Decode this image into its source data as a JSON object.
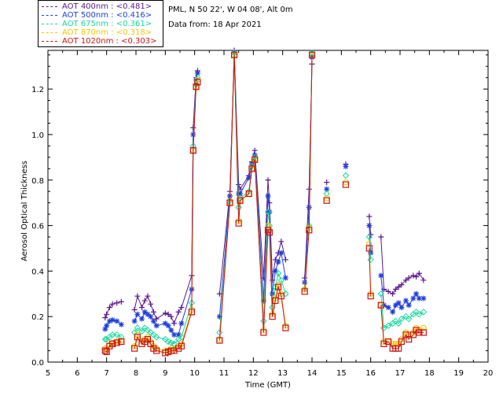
{
  "legend": [
    {
      "label": "AOT  400nm : <0.481>",
      "color": "#5a1a8c"
    },
    {
      "label": "AOT  500nm : <0.416>",
      "color": "#1f3fd8"
    },
    {
      "label": "AOT  675nm : <0.361>",
      "color": "#19d6a0"
    },
    {
      "label": "AOT  870nm : <0.318>",
      "color": "#f2c800"
    },
    {
      "label": "AOT 1020nm : <0.303>",
      "color": "#c81414"
    }
  ],
  "info": {
    "location": "PML, N 50 22', W 04 08', Alt 0m",
    "date": "Data from: 18 Apr 2021"
  },
  "chart_data": {
    "type": "scatter",
    "xlabel": "Time (GMT)",
    "ylabel": "Aerosol Optical Thickness",
    "xlim": [
      5,
      20
    ],
    "ylim": [
      0,
      1.37
    ],
    "xticks": [
      "5",
      "6",
      "7",
      "8",
      "9",
      "10",
      "11",
      "12",
      "13",
      "14",
      "15",
      "16",
      "17",
      "18",
      "19",
      "20"
    ],
    "yticks": [
      "0.0",
      "0.2",
      "0.4",
      "0.6",
      "0.8",
      "1.0",
      "1.2"
    ],
    "x": [
      6.95,
      7.0,
      7.1,
      7.2,
      7.35,
      7.5,
      7.95,
      8.05,
      8.2,
      8.3,
      8.4,
      8.5,
      8.6,
      8.7,
      9.0,
      9.1,
      9.2,
      9.3,
      9.45,
      9.55,
      9.9,
      9.95,
      10.05,
      10.1,
      10.85,
      11.2,
      11.35,
      11.5,
      11.55,
      11.85,
      11.95,
      12.05,
      12.35,
      12.5,
      12.55,
      12.65,
      12.75,
      12.85,
      12.95,
      13.1,
      13.75,
      13.9,
      14.0,
      14.5,
      15.15,
      15.95,
      16.0,
      16.35,
      16.45,
      16.6,
      16.75,
      16.85,
      16.95,
      17.05,
      17.2,
      17.3,
      17.45,
      17.55,
      17.65,
      17.8
    ],
    "series": [
      {
        "name": "AOT  400nm",
        "values": [
          0.195,
          0.21,
          0.24,
          0.255,
          0.26,
          0.265,
          0.23,
          0.29,
          0.24,
          0.27,
          0.29,
          0.255,
          0.22,
          0.19,
          0.215,
          0.21,
          0.2,
          0.17,
          0.22,
          0.24,
          0.38,
          1.03,
          1.25,
          1.28,
          0.3,
          0.75,
          1.37,
          0.78,
          0.76,
          0.82,
          0.88,
          0.93,
          0.37,
          0.8,
          0.7,
          0.36,
          0.45,
          0.48,
          0.53,
          0.45,
          0.37,
          0.76,
          1.31,
          0.79,
          0.87,
          0.64,
          0.56,
          0.55,
          0.32,
          0.31,
          0.3,
          0.32,
          0.33,
          0.34,
          0.36,
          0.37,
          0.38,
          0.375,
          0.39,
          0.36
        ]
      },
      {
        "name": "AOT  500nm",
        "values": [
          0.145,
          0.16,
          0.18,
          0.185,
          0.18,
          0.165,
          0.18,
          0.21,
          0.19,
          0.22,
          0.21,
          0.2,
          0.18,
          0.16,
          0.17,
          0.16,
          0.14,
          0.12,
          0.12,
          0.17,
          0.32,
          1.0,
          1.24,
          1.27,
          0.2,
          0.73,
          1.36,
          0.74,
          0.74,
          0.81,
          0.87,
          0.91,
          0.27,
          0.73,
          0.66,
          0.3,
          0.4,
          0.44,
          0.48,
          0.37,
          0.35,
          0.68,
          1.34,
          0.76,
          0.86,
          0.6,
          0.48,
          0.38,
          0.25,
          0.24,
          0.22,
          0.25,
          0.26,
          0.24,
          0.27,
          0.25,
          0.28,
          0.3,
          0.28,
          0.28
        ]
      },
      {
        "name": "AOT  675nm",
        "values": [
          0.1,
          0.1,
          0.11,
          0.12,
          0.12,
          0.11,
          0.13,
          0.15,
          0.135,
          0.15,
          0.14,
          0.13,
          0.12,
          0.11,
          0.1,
          0.09,
          0.085,
          0.08,
          0.1,
          0.11,
          0.26,
          0.95,
          1.22,
          1.25,
          0.13,
          0.71,
          1.36,
          0.68,
          0.72,
          0.75,
          0.86,
          0.9,
          0.18,
          0.66,
          0.6,
          0.24,
          0.33,
          0.39,
          0.36,
          0.3,
          0.32,
          0.6,
          1.36,
          0.74,
          0.82,
          0.55,
          0.45,
          0.3,
          0.15,
          0.16,
          0.17,
          0.18,
          0.17,
          0.19,
          0.2,
          0.19,
          0.21,
          0.22,
          0.21,
          0.22
        ]
      },
      {
        "name": "AOT  870nm",
        "values": [
          0.06,
          0.055,
          0.075,
          0.085,
          0.09,
          0.095,
          0.07,
          0.12,
          0.09,
          0.1,
          0.11,
          0.09,
          0.07,
          0.06,
          0.05,
          0.05,
          0.06,
          0.055,
          0.07,
          0.08,
          0.23,
          0.93,
          1.21,
          1.24,
          0.1,
          0.7,
          1.35,
          0.62,
          0.71,
          0.74,
          0.85,
          0.89,
          0.14,
          0.6,
          0.58,
          0.21,
          0.28,
          0.34,
          0.3,
          0.16,
          0.32,
          0.59,
          1.35,
          0.72,
          0.79,
          0.52,
          0.3,
          0.25,
          0.09,
          0.09,
          0.08,
          0.08,
          0.08,
          0.1,
          0.13,
          0.12,
          0.13,
          0.15,
          0.14,
          0.15
        ]
      },
      {
        "name": "AOT 1020nm",
        "values": [
          0.05,
          0.045,
          0.07,
          0.08,
          0.085,
          0.09,
          0.06,
          0.11,
          0.08,
          0.09,
          0.1,
          0.08,
          0.06,
          0.05,
          0.04,
          0.045,
          0.05,
          0.05,
          0.06,
          0.07,
          0.22,
          0.93,
          1.21,
          1.23,
          0.095,
          0.7,
          1.35,
          0.61,
          0.71,
          0.74,
          0.85,
          0.89,
          0.13,
          0.58,
          0.57,
          0.2,
          0.27,
          0.33,
          0.29,
          0.15,
          0.31,
          0.58,
          1.35,
          0.71,
          0.78,
          0.5,
          0.29,
          0.25,
          0.08,
          0.09,
          0.06,
          0.06,
          0.06,
          0.09,
          0.12,
          0.1,
          0.12,
          0.14,
          0.13,
          0.13
        ]
      }
    ],
    "grid": false,
    "legend_position": "top-left"
  }
}
